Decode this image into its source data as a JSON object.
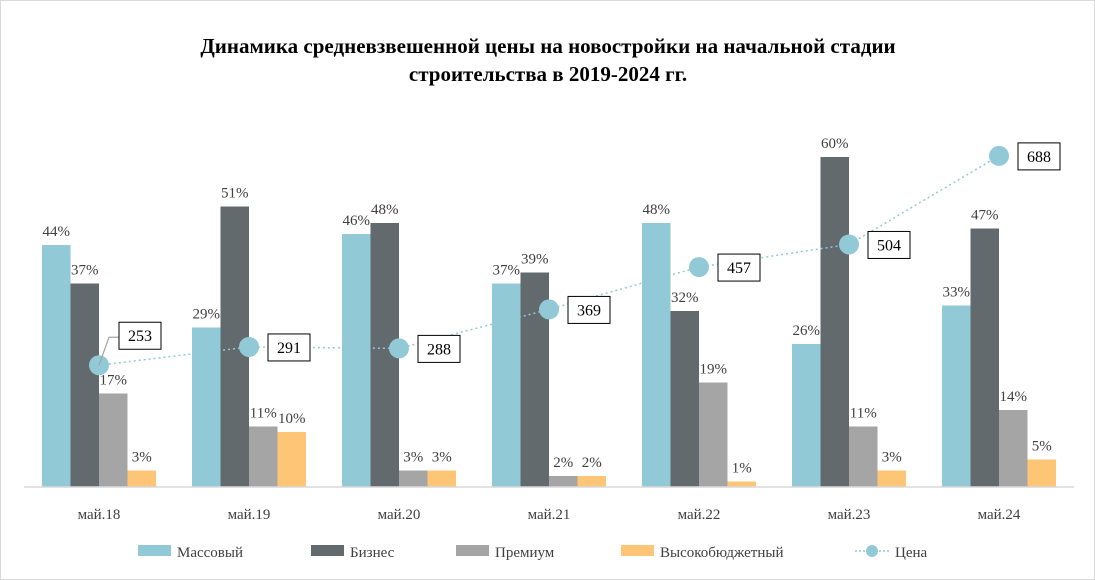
{
  "chart_data": {
    "type": "bar",
    "title_lines": [
      "Динамика  средневзвешенной цены на новостройки  на начальной стадии",
      "строительства  в 2019-2024 гг."
    ],
    "categories": [
      "май.18",
      "май.19",
      "май.20",
      "май.21",
      "май.22",
      "май.23",
      "май.24"
    ],
    "series": [
      {
        "name": "Массовый",
        "color": "#92c9d6",
        "values": [
          44,
          29,
          46,
          37,
          48,
          26,
          33
        ]
      },
      {
        "name": "Бизнес",
        "color": "#636a6e",
        "values": [
          37,
          51,
          48,
          39,
          32,
          60,
          47
        ]
      },
      {
        "name": "Премиум",
        "color": "#a5a5a5",
        "values": [
          17,
          11,
          3,
          2,
          19,
          11,
          14
        ]
      },
      {
        "name": "Высокобюджетный",
        "color": "#fdc677",
        "values": [
          3,
          10,
          3,
          2,
          1,
          3,
          5
        ]
      }
    ],
    "line_series": {
      "name": "Цена",
      "color": "#92c9d6",
      "values": [
        253,
        291,
        288,
        369,
        457,
        504,
        688
      ],
      "axis": "secondary"
    },
    "ylim": [
      0,
      70
    ],
    "y2lim": [
      0,
      800
    ],
    "value_suffix": "%",
    "grid": false,
    "legend": "bottom"
  }
}
